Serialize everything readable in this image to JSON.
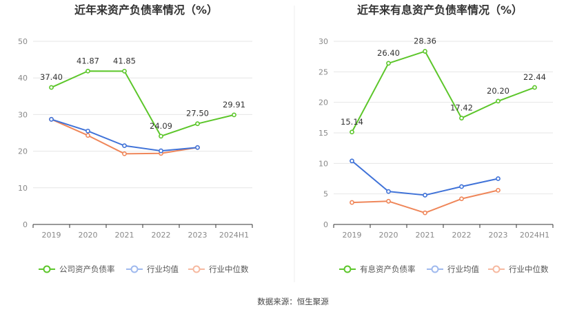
{
  "source": "数据来源：恒生聚源",
  "colors": {
    "main": "#5cc62a",
    "avg": "#3f72d8",
    "median": "#ef8659"
  },
  "chart_data": [
    {
      "type": "line",
      "title": "近年来资产负债率情况（%）",
      "categories": [
        "2019",
        "2020",
        "2021",
        "2022",
        "2023",
        "2024H1"
      ],
      "ylim": [
        0,
        50
      ],
      "yticks": [
        0,
        10,
        20,
        30,
        40,
        50
      ],
      "grid": true,
      "legend_position": "bottom",
      "series": [
        {
          "name": "公司资产负债率",
          "color": "#5cc62a",
          "values": [
            37.4,
            41.87,
            41.85,
            24.09,
            27.5,
            29.91
          ],
          "labels": [
            "37.40",
            "41.87",
            "41.85",
            "24.09",
            "27.50",
            "29.91"
          ]
        },
        {
          "name": "行业均值",
          "color": "#3f72d8",
          "values": [
            28.7,
            25.5,
            21.5,
            20.1,
            21.0,
            null
          ]
        },
        {
          "name": "行业中位数",
          "color": "#ef8659",
          "values": [
            28.7,
            24.3,
            19.3,
            19.4,
            21.0,
            null
          ]
        }
      ]
    },
    {
      "type": "line",
      "title": "近年来有息资产负债率情况（%）",
      "categories": [
        "2019",
        "2020",
        "2021",
        "2022",
        "2023",
        "2024H1"
      ],
      "ylim": [
        0,
        30
      ],
      "yticks": [
        0,
        5,
        10,
        15,
        20,
        25,
        30
      ],
      "grid": true,
      "legend_position": "bottom",
      "series": [
        {
          "name": "有息资产负债率",
          "color": "#5cc62a",
          "values": [
            15.14,
            26.4,
            28.36,
            17.42,
            20.2,
            22.44
          ],
          "labels": [
            "15.14",
            "26.40",
            "28.36",
            "17.42",
            "20.20",
            "22.44"
          ]
        },
        {
          "name": "行业均值",
          "color": "#3f72d8",
          "values": [
            10.4,
            5.4,
            4.8,
            6.2,
            7.5,
            null
          ]
        },
        {
          "name": "行业中位数",
          "color": "#ef8659",
          "values": [
            3.6,
            3.8,
            1.9,
            4.2,
            5.6,
            null
          ]
        }
      ]
    }
  ]
}
